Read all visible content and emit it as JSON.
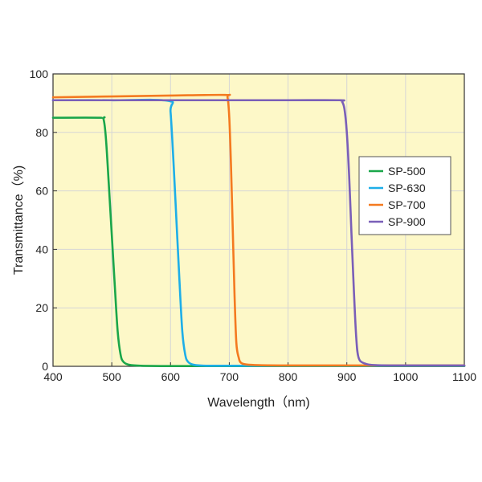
{
  "chart_data": {
    "type": "line",
    "xlabel": "Wavelength（nm)",
    "ylabel": "Transmittance（%)",
    "xlim": [
      400,
      1100
    ],
    "ylim": [
      0,
      100
    ],
    "xticks": [
      "400",
      "500",
      "600",
      "700",
      "800",
      "900",
      "1000",
      "1100"
    ],
    "yticks": [
      "0",
      "20",
      "40",
      "60",
      "80",
      "100"
    ],
    "grid": true,
    "background_color": "#fdf8c8",
    "legend_position": "right",
    "series": [
      {
        "name": "SP-500",
        "color": "#1aa64a",
        "x": [
          400,
          480,
          486,
          490,
          495,
          500,
          505,
          510,
          515,
          520,
          530,
          550,
          600,
          700,
          800,
          900,
          1000,
          1100
        ],
        "y": [
          85,
          85,
          84.5,
          78,
          62,
          45,
          28,
          12,
          4,
          1.5,
          0.5,
          0.2,
          0.1,
          0.1,
          0.1,
          0.1,
          0.1,
          0.1
        ]
      },
      {
        "name": "SP-630",
        "color": "#1eaee8",
        "x": [
          400,
          500,
          596,
          600,
          605,
          610,
          615,
          620,
          625,
          630,
          640,
          660,
          700,
          800,
          900,
          1000,
          1100
        ],
        "y": [
          91,
          91,
          90.8,
          87,
          70,
          50,
          30,
          12,
          4,
          1.5,
          0.5,
          0.2,
          0.2,
          0.2,
          0.2,
          0.2,
          0.2
        ]
      },
      {
        "name": "SP-700",
        "color": "#f47a20",
        "x": [
          400,
          500,
          600,
          693,
          697,
          700,
          703,
          706,
          709,
          712,
          716,
          720,
          730,
          750,
          800,
          900,
          1000,
          1100
        ],
        "y": [
          92,
          92.3,
          92.6,
          92.8,
          92,
          85,
          68,
          46,
          24,
          8,
          3,
          1.2,
          0.6,
          0.4,
          0.3,
          0.3,
          0.3,
          0.3
        ]
      },
      {
        "name": "SP-900",
        "color": "#7a5fb8",
        "x": [
          400,
          500,
          600,
          700,
          800,
          888,
          892,
          896,
          900,
          904,
          908,
          912,
          916,
          920,
          930,
          950,
          1000,
          1100
        ],
        "y": [
          91,
          91,
          91,
          91,
          91,
          91,
          90.5,
          88,
          80,
          65,
          45,
          26,
          10,
          3,
          1,
          0.4,
          0.3,
          0.3
        ]
      }
    ]
  }
}
